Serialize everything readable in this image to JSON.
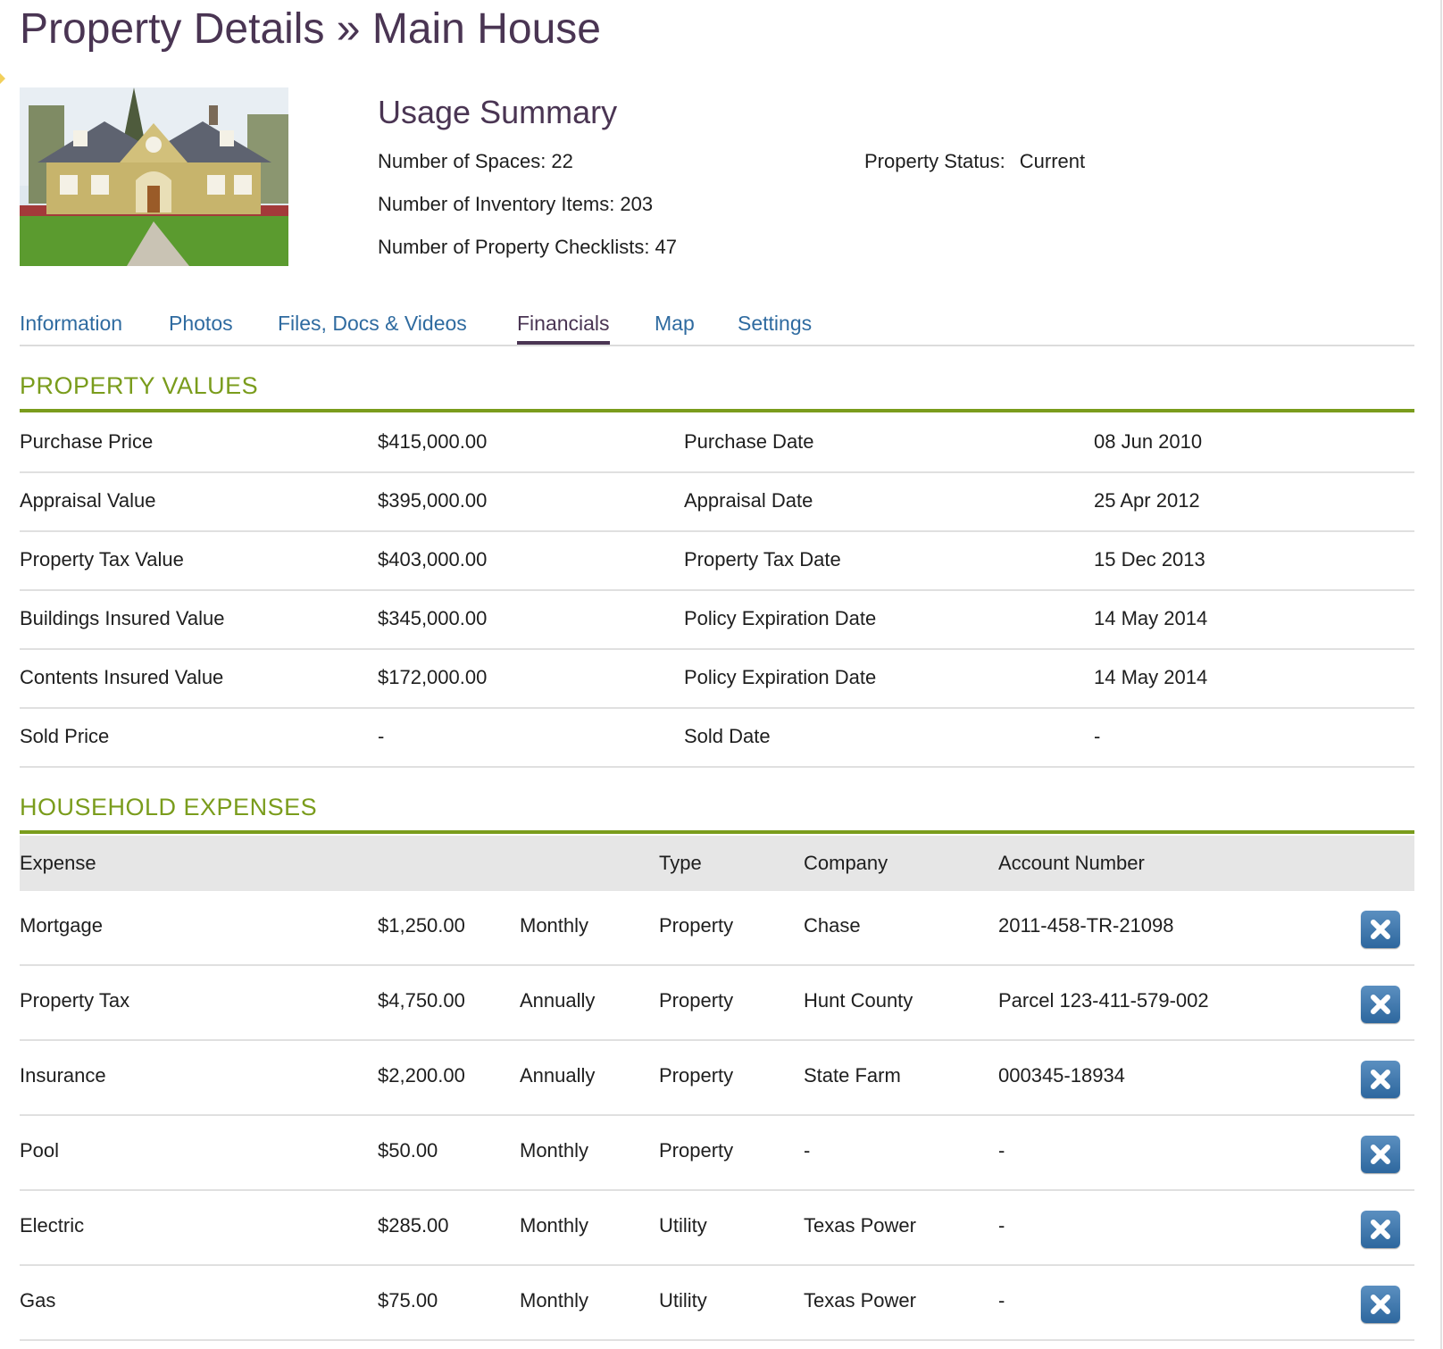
{
  "page": {
    "title": "Property Details » Main House"
  },
  "usage_summary": {
    "title": "Usage Summary",
    "spaces": "Number of Spaces: 22",
    "inventory": "Number of Inventory Items: 203",
    "checklists": "Number of Property Checklists: 47",
    "status_label": "Property Status:",
    "status_value": "Current"
  },
  "tabs": {
    "items": [
      "Information",
      "Photos",
      "Files, Docs & Videos",
      "Financials",
      "Map",
      "Settings"
    ],
    "active": "Financials"
  },
  "property_values": {
    "title": "PROPERTY VALUES",
    "rows": [
      {
        "label": "Purchase Price",
        "value": "$415,000.00",
        "date_label": "Purchase Date",
        "date": "08 Jun 2010"
      },
      {
        "label": "Appraisal Value",
        "value": "$395,000.00",
        "date_label": "Appraisal Date",
        "date": "25 Apr 2012"
      },
      {
        "label": "Property Tax Value",
        "value": "$403,000.00",
        "date_label": "Property Tax Date",
        "date": "15 Dec 2013"
      },
      {
        "label": "Buildings Insured Value",
        "value": "$345,000.00",
        "date_label": "Policy Expiration Date",
        "date": "14 May 2014"
      },
      {
        "label": "Contents Insured Value",
        "value": "$172,000.00",
        "date_label": "Policy Expiration Date",
        "date": "14 May 2014"
      },
      {
        "label": "Sold Price",
        "value": "-",
        "date_label": "Sold Date",
        "date": "-"
      }
    ]
  },
  "household_expenses": {
    "title": "HOUSEHOLD EXPENSES",
    "headers": {
      "expense": "Expense",
      "type": "Type",
      "company": "Company",
      "account": "Account Number"
    },
    "rows": [
      {
        "expense": "Mortgage",
        "amount": "$1,250.00",
        "frequency": "Monthly",
        "type": "Property",
        "company": "Chase",
        "account": "2011-458-TR-21098"
      },
      {
        "expense": "Property Tax",
        "amount": "$4,750.00",
        "frequency": "Annually",
        "type": "Property",
        "company": "Hunt County",
        "account": "Parcel 123-411-579-002"
      },
      {
        "expense": "Insurance",
        "amount": "$2,200.00",
        "frequency": "Annually",
        "type": "Property",
        "company": "State Farm",
        "account": "000345-18934"
      },
      {
        "expense": "Pool",
        "amount": "$50.00",
        "frequency": "Monthly",
        "type": "Property",
        "company": "-",
        "account": "-"
      },
      {
        "expense": "Electric",
        "amount": "$285.00",
        "frequency": "Monthly",
        "type": "Utility",
        "company": "Texas Power",
        "account": "-"
      },
      {
        "expense": "Gas",
        "amount": "$75.00",
        "frequency": "Monthly",
        "type": "Utility",
        "company": "Texas Power",
        "account": "-"
      }
    ]
  },
  "colors": {
    "title_purple": "#4a3553",
    "link_blue": "#2f6ba0",
    "section_green": "#7a9c1c",
    "delete_button_blue": "#2d679e"
  },
  "icons": {
    "delete": "close-x-icon"
  }
}
